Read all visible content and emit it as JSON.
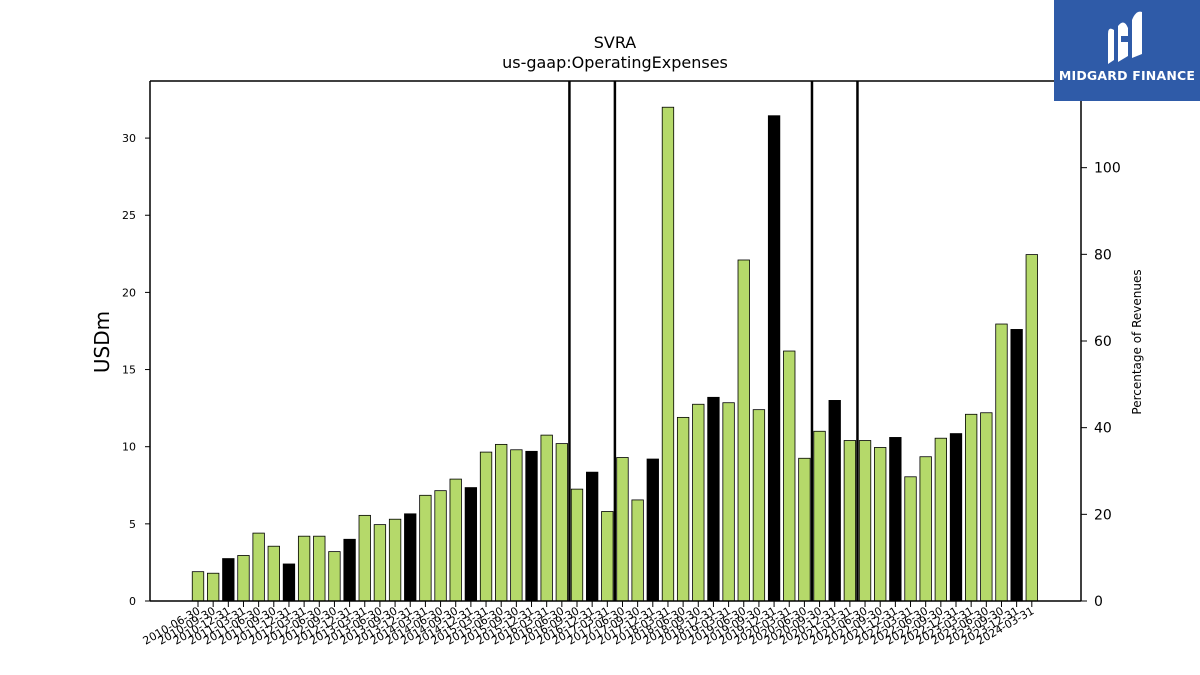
{
  "logo": {
    "text": "MIDGARD FINANCE",
    "icon": "midgard-m-logo-icon"
  },
  "chart_data": {
    "type": "bar",
    "title": "SVRA",
    "subtitle": "us-gaap:OperatingExpenses",
    "xlabel": "",
    "ylabel": "USDm",
    "ylabel_right": "Percentage of Revenues",
    "ylim": [
      0,
      33.7
    ],
    "yticks": [
      0,
      5,
      10,
      15,
      20,
      25,
      30
    ],
    "ylim_right": [
      0,
      120
    ],
    "yticks_right": [
      0,
      20,
      40,
      60,
      80,
      100
    ],
    "grid": false,
    "legend": "none",
    "colors": {
      "bar_default": "#b5d96a",
      "bar_fiscal_q4": "#000000",
      "edge": "#000000"
    },
    "x_tick_labels": [
      "2010-06-30",
      "2010-09-30",
      "2010-12-31",
      "2011-03-31",
      "2011-06-30",
      "2011-09-30",
      "2011-12-31",
      "2012-03-31",
      "2012-06-30",
      "2012-09-30",
      "2012-12-31",
      "2013-03-31",
      "2013-06-30",
      "2013-09-30",
      "2013-12-31",
      "2014-03-31",
      "2014-06-30",
      "2014-09-30",
      "2014-12-31",
      "2015-03-31",
      "2015-06-30",
      "2015-09-30",
      "2015-12-31",
      "2016-03-31",
      "2016-06-30",
      "2016-09-30",
      "2016-12-31",
      "2017-03-31",
      "2017-06-30",
      "2017-09-30",
      "2017-12-31",
      "2018-03-31",
      "2018-06-30",
      "2018-09-30",
      "2018-12-31",
      "2019-03-31",
      "2019-06-30",
      "2019-09-30",
      "2019-12-31",
      "2020-03-31",
      "2020-06-30",
      "2020-09-30",
      "2020-12-31",
      "2021-03-31",
      "2021-06-30",
      "2021-09-30",
      "2021-12-31",
      "2022-03-31",
      "2022-06-30",
      "2022-09-30",
      "2022-12-31",
      "2023-03-31",
      "2023-06-30",
      "2023-09-30",
      "2023-12-31",
      "2024-03-31"
    ],
    "values": [
      1.9,
      1.8,
      2.75,
      2.95,
      4.4,
      3.55,
      2.4,
      4.2,
      4.2,
      3.2,
      4.0,
      5.55,
      4.95,
      5.3,
      5.65,
      6.85,
      7.15,
      7.9,
      7.35,
      9.65,
      10.15,
      9.8,
      9.7,
      10.75,
      10.2,
      7.25,
      8.35,
      5.8,
      9.3,
      6.55,
      9.2,
      32.0,
      11.9,
      12.75,
      13.2,
      12.85,
      22.1,
      12.4,
      31.45,
      16.2,
      9.25,
      11.0,
      13.0,
      10.4,
      10.4,
      9.95,
      10.6,
      8.05,
      9.35,
      10.55,
      10.85,
      12.1,
      12.2,
      17.95,
      17.6,
      22.45
    ],
    "highlight_black": [
      2,
      6,
      10,
      14,
      18,
      22,
      26,
      30,
      34,
      38,
      42,
      46,
      50,
      54
    ],
    "vertical_lines_after_index": [
      24,
      27,
      40,
      43
    ]
  }
}
